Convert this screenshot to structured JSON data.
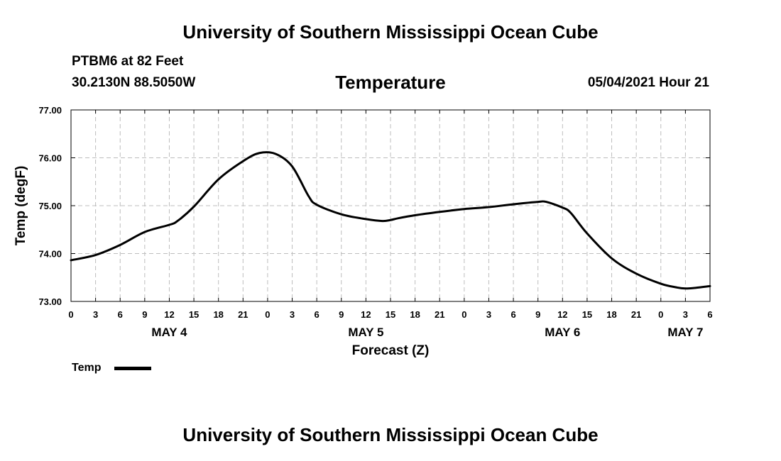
{
  "header": {
    "title": "University of Southern Mississippi Ocean Cube",
    "station": "PTBM6 at 82 Feet",
    "coords": "30.2130N  88.5050W",
    "datetime": "05/04/2021 Hour 21"
  },
  "footer": {
    "title": "University of Southern Mississippi Ocean Cube"
  },
  "chart_data": {
    "type": "line",
    "title": "Temperature",
    "xlabel": "Forecast (Z)",
    "ylabel": "Temp (degF)",
    "ylim": [
      73.0,
      77.0
    ],
    "yticks": [
      "73.00",
      "74.00",
      "75.00",
      "76.00",
      "77.00"
    ],
    "xlim_hours": [
      0,
      78
    ],
    "xtick_labels": [
      "0",
      "3",
      "6",
      "9",
      "12",
      "15",
      "18",
      "21",
      "0",
      "3",
      "6",
      "9",
      "12",
      "15",
      "18",
      "21",
      "0",
      "3",
      "6",
      "9",
      "12",
      "15",
      "18",
      "21",
      "0",
      "3",
      "6"
    ],
    "day_labels": [
      {
        "label": "MAY 4",
        "hour": 12
      },
      {
        "label": "MAY 5",
        "hour": 36
      },
      {
        "label": "MAY 6",
        "hour": 60
      },
      {
        "label": "MAY 7",
        "hour": 75
      }
    ],
    "grid": true,
    "legend": "bottom-left",
    "series": [
      {
        "name": "Temp",
        "color": "#000000",
        "x": [
          0,
          3,
          6,
          9,
          12,
          13,
          15,
          18,
          21,
          23,
          25,
          27,
          29,
          30,
          33,
          36,
          38,
          39,
          40,
          42,
          45,
          48,
          51,
          54,
          57,
          58,
          60,
          61,
          63,
          66,
          69,
          72,
          74,
          75,
          76,
          78
        ],
        "values": [
          73.86,
          73.97,
          74.18,
          74.45,
          74.6,
          74.68,
          74.98,
          75.55,
          75.93,
          76.1,
          76.08,
          75.82,
          75.2,
          75.02,
          74.82,
          74.72,
          74.68,
          74.7,
          74.74,
          74.8,
          74.87,
          74.93,
          74.97,
          75.03,
          75.08,
          75.08,
          74.96,
          74.85,
          74.42,
          73.9,
          73.58,
          73.37,
          73.29,
          73.27,
          73.28,
          73.32
        ]
      }
    ]
  }
}
